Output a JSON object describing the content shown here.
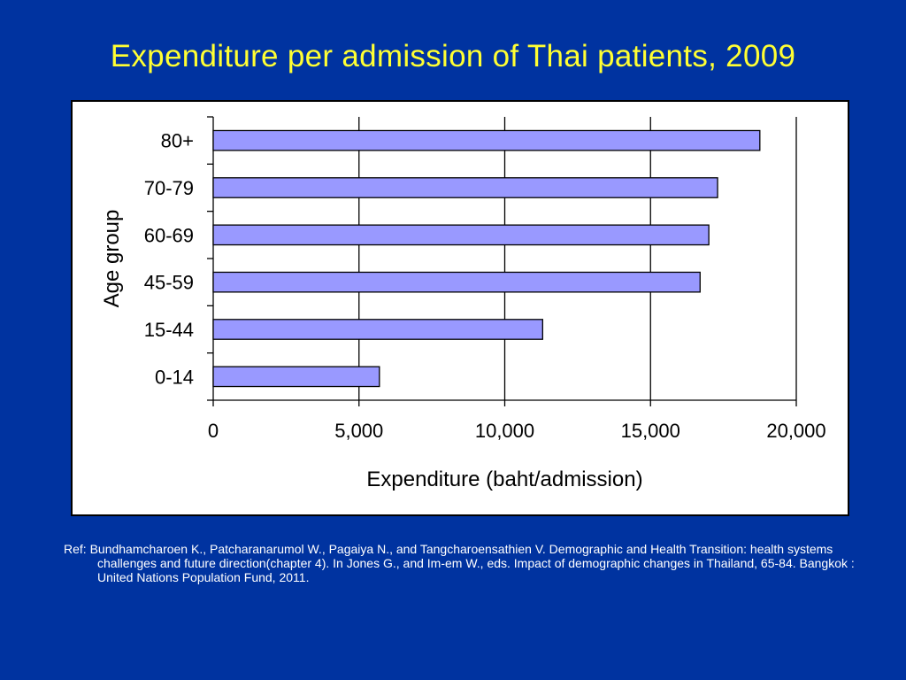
{
  "slide": {
    "title": "Expenditure per admission of Thai patients, 2009",
    "background_color": "#0033a0",
    "title_color": "#ffff33"
  },
  "chart_data": {
    "type": "bar",
    "orientation": "horizontal",
    "categories": [
      "0-14",
      "15-44",
      "45-59",
      "60-69",
      "70-79",
      "80+"
    ],
    "values": [
      5700,
      11300,
      16700,
      17000,
      17300,
      18750
    ],
    "xlabel": "Expenditure (baht/admission)",
    "ylabel": "Age group",
    "xlim": [
      0,
      20000
    ],
    "x_ticks": [
      0,
      5000,
      10000,
      15000,
      20000
    ],
    "x_tick_labels": [
      "0",
      "5,000",
      "10,000",
      "15,000",
      "20,000"
    ],
    "grid": "vertical",
    "legend": "none",
    "bar_color": "#9999ff",
    "bar_edge_color": "#000000"
  },
  "reference": {
    "text": "Ref: Bundhamcharoen K., Patcharanarumol W., Pagaiya N., and Tangcharoensathien V. Demographic and Health Transition: health systems challenges and future direction(chapter 4). In Jones G., and Im-em W., eds. Impact of demographic changes in Thailand, 65-84. Bangkok : United Nations Population Fund, 2011."
  }
}
